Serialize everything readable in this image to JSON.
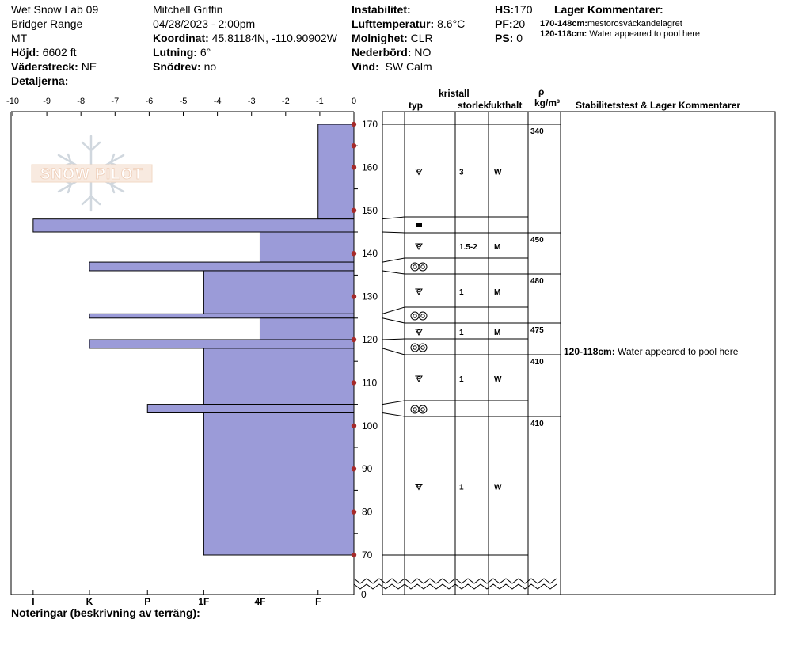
{
  "header": {
    "site": "Wet Snow Lab 09",
    "range": "Bridger Range",
    "state": "MT",
    "elevation_label": "Höjd:",
    "elevation_value": "6602 ft",
    "aspect_label": "Väderstreck:",
    "aspect_value": "NE",
    "details_label": "Detaljerna:",
    "observer": "Mitchell Griffin",
    "datetime": "04/28/2023 - 2:00pm",
    "coord_label": "Koordinat:",
    "coord_value": "45.81184N, -110.90902W",
    "slope_label": "Lutning:",
    "slope_value": "6°",
    "drift_label": "Snödrev:",
    "drift_value": "no",
    "instability_label": "Instabilitet:",
    "air_temp_label": "Lufttemperatur:",
    "air_temp_value": "8.6°C",
    "cloud_label": "Molnighet:",
    "cloud_value": "CLR",
    "precip_label": "Nederbörd:",
    "precip_value": "NO",
    "wind_label": "Vind:",
    "wind_value": "SW Calm",
    "hs_label": "HS:",
    "hs_value": "170",
    "pf_label": "PF:",
    "pf_value": "20",
    "ps_label": "PS:",
    "ps_value": "0",
    "layer_comments_title": "Lager Kommentarer:",
    "layer_comments": [
      {
        "range": "170-148cm:",
        "text": "mestorosväckandelagret"
      },
      {
        "range": "120-118cm:",
        "text": "Water appeared to pool here"
      }
    ]
  },
  "table": {
    "col_crystal": "kristall",
    "col_type": "typ",
    "col_size": "storlek",
    "col_moisture": "fukthalt",
    "col_rho": "ρ",
    "col_density_unit": "kg/m³",
    "col_stability": "Stabilitetstest & Lager Kommentarer",
    "stability_comment_range": "120-118cm:",
    "stability_comment_text": "Water appeared to pool here"
  },
  "watermark": "SNOW PILOT",
  "footer": {
    "notes_label": "Noteringar (beskrivning av terräng):"
  },
  "chart_data": {
    "type": "bar",
    "x_axis_top_ticks": [
      "-10",
      "-9",
      "-8",
      "-7",
      "-6",
      "-5",
      "-4",
      "-3",
      "-2",
      "-1",
      "0"
    ],
    "hardness_ticks": [
      "I",
      "K",
      "P",
      "1F",
      "4F",
      "F"
    ],
    "y_ticks": [
      170,
      160,
      150,
      140,
      130,
      120,
      110,
      100,
      90,
      80,
      70
    ],
    "y_zero_label": "0",
    "height_range": [
      70,
      170
    ],
    "layers": [
      {
        "top": 170,
        "bottom": 148,
        "hardness": -1.05,
        "grain": "rounds-faceted",
        "size": "3",
        "moisture": "W"
      },
      {
        "top": 148,
        "bottom": 145,
        "hardness": -9.4,
        "grain": "ice-layer",
        "size": "",
        "moisture": ""
      },
      {
        "top": 145,
        "bottom": 138,
        "hardness": -2.75,
        "grain": "rounds-faceted",
        "size": "1.5-2",
        "moisture": "M"
      },
      {
        "top": 138,
        "bottom": 136,
        "hardness": -7.75,
        "grain": "melt-clusters",
        "size": "",
        "moisture": ""
      },
      {
        "top": 136,
        "bottom": 126,
        "hardness": -4.4,
        "grain": "rounds-faceted",
        "size": "1",
        "moisture": "M"
      },
      {
        "top": 126,
        "bottom": 125,
        "hardness": -7.75,
        "grain": "melt-clusters",
        "size": "",
        "moisture": ""
      },
      {
        "top": 125,
        "bottom": 120,
        "hardness": -2.75,
        "grain": "rounds-faceted",
        "size": "1",
        "moisture": "M"
      },
      {
        "top": 120,
        "bottom": 118,
        "hardness": -7.75,
        "grain": "melt-clusters",
        "size": "",
        "moisture": ""
      },
      {
        "top": 118,
        "bottom": 105,
        "hardness": -4.4,
        "grain": "rounds-faceted",
        "size": "1",
        "moisture": "W"
      },
      {
        "top": 105,
        "bottom": 103,
        "hardness": -6.05,
        "grain": "melt-clusters",
        "size": "",
        "moisture": ""
      },
      {
        "top": 103,
        "bottom": 70,
        "hardness": -4.4,
        "grain": "rounds-faceted",
        "size": "1",
        "moisture": "W"
      }
    ],
    "densities": [
      {
        "depth": 170,
        "value": "340"
      },
      {
        "depth": 145,
        "value": "450"
      },
      {
        "depth": 136,
        "value": "480"
      },
      {
        "depth": 125,
        "value": "475"
      },
      {
        "depth": 118,
        "value": "410"
      },
      {
        "depth": 103,
        "value": "410"
      }
    ],
    "bar_color": "#9b9bd8",
    "marker_color": "#a52a2a"
  }
}
